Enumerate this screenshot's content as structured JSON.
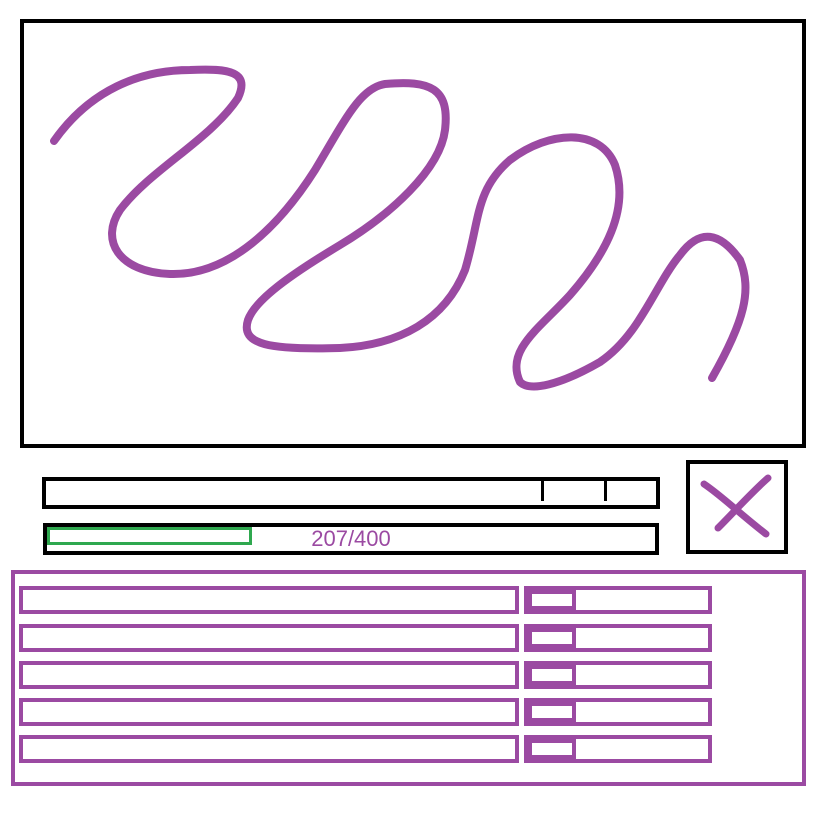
{
  "canvas": {
    "stroke_color": "#9b4aa2"
  },
  "scrollbar": {
    "position": 0.9
  },
  "progress": {
    "value": 207,
    "max": 400,
    "label": "207/400",
    "fill_color": "#2fa84f",
    "text_color": "#9b4aa2"
  },
  "close_button": {
    "icon": "close-icon",
    "color": "#9b4aa2"
  },
  "list": {
    "accent": "#9b4aa2",
    "rows": [
      {
        "field_value": "",
        "slider_value": 0
      },
      {
        "field_value": "",
        "slider_value": 0
      },
      {
        "field_value": "",
        "slider_value": 0
      },
      {
        "field_value": "",
        "slider_value": 0
      },
      {
        "field_value": "",
        "slider_value": 0
      }
    ]
  }
}
